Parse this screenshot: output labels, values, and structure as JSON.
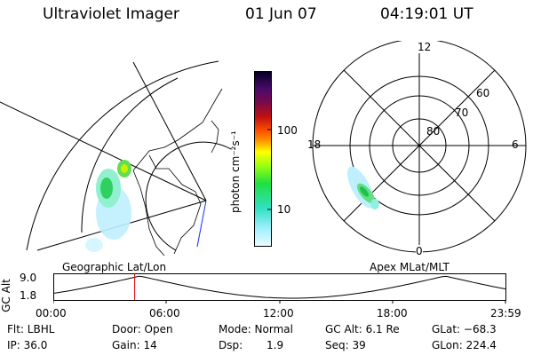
{
  "header": {
    "instrument": "Ultraviolet Imager",
    "date": "01 Jun 07",
    "time": "04:19:01 UT"
  },
  "left_map": {
    "label": "Geographic Lat/Lon"
  },
  "colorbar": {
    "unit_label": "photon cm⁻²s⁻¹",
    "ticks": [
      "100",
      "10"
    ],
    "colors": [
      "#000020",
      "#1b0a4a",
      "#4a0a6a",
      "#7a0a4a",
      "#a00020",
      "#d01010",
      "#ff5000",
      "#ff9900",
      "#ffcc00",
      "#ffff00",
      "#c8ff00",
      "#7aff20",
      "#20e070",
      "#30e0c0",
      "#8ff0ff",
      "#c8f4ff",
      "#e8fbff"
    ]
  },
  "right_map": {
    "label": "Apex MLat/MLT",
    "mlt_labels": [
      "12",
      "18",
      "6",
      "0"
    ],
    "lat_labels": [
      "60",
      "70",
      "80"
    ]
  },
  "altitude_plot": {
    "ylabel": "GC Alt",
    "y_ticks": [
      "9.0",
      "1.8"
    ],
    "x_ticks": [
      "00:00",
      "06:00",
      "12:00",
      "18:00",
      "23:59"
    ],
    "current_time_hours": 4.32,
    "marker_color": "#e00000"
  },
  "footer": {
    "flt": "Flt: LBHL",
    "door": "Door: Open",
    "mode": "Mode: Normal",
    "gcalt": "GC Alt: 6.1 Re",
    "glat": "GLat: −68.3",
    "ip": "IP: 36.0",
    "gain": "Gain: 14",
    "dsp_label": "Dsp:",
    "dsp_value": "1.9",
    "seq": "Seq: 39",
    "glon": "GLon: 224.4"
  }
}
